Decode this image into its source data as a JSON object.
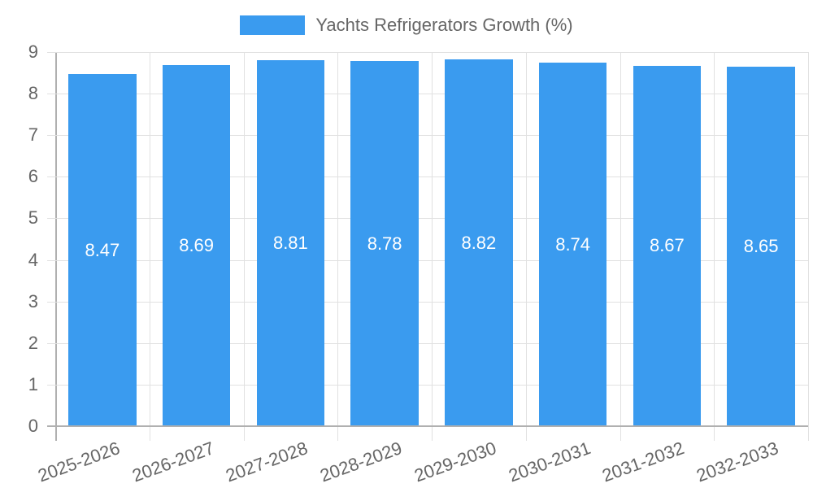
{
  "chart_data": {
    "type": "bar",
    "title": "",
    "categories": [
      "2025-2026",
      "2026-2027",
      "2027-2028",
      "2028-2029",
      "2029-2030",
      "2030-2031",
      "2031-2032",
      "2032-2033"
    ],
    "series": [
      {
        "name": "Yachts Refrigerators Growth (%)",
        "values": [
          8.47,
          8.69,
          8.81,
          8.78,
          8.82,
          8.74,
          8.67,
          8.65
        ],
        "color": "#3a9bef"
      }
    ],
    "values": [
      8.47,
      8.69,
      8.81,
      8.78,
      8.82,
      8.74,
      8.67,
      8.65
    ],
    "data_labels": [
      "8.47",
      "8.69",
      "8.81",
      "8.78",
      "8.82",
      "8.74",
      "8.67",
      "8.65"
    ],
    "xlabel": "",
    "ylabel": "",
    "ylim": [
      0,
      9
    ],
    "yticks": [
      "0",
      "1",
      "2",
      "3",
      "4",
      "5",
      "6",
      "7",
      "8",
      "9"
    ],
    "grid": true,
    "legend_position": "top"
  },
  "legend": {
    "label": "Yachts Refrigerators Growth (%)"
  }
}
